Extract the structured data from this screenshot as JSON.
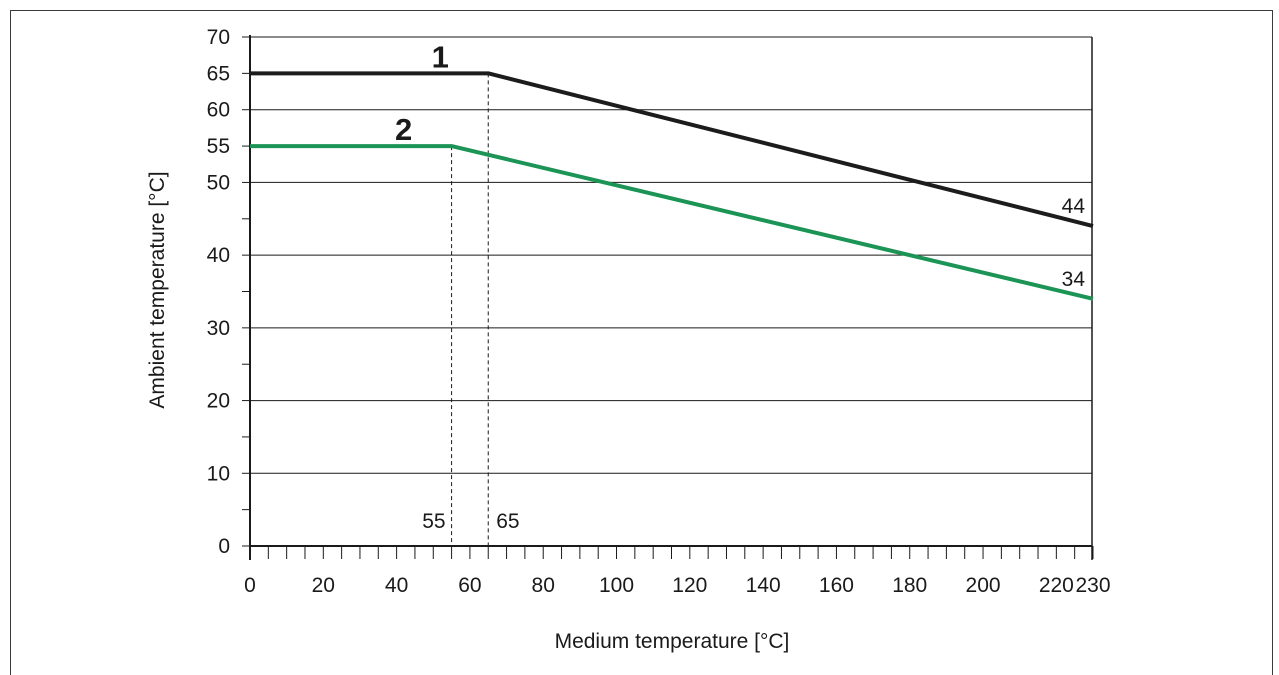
{
  "chart_data": {
    "type": "line",
    "xlabel": "Medium temperature [°C]",
    "ylabel": "Ambient temperature [°C]",
    "xlim": [
      0,
      230
    ],
    "ylim": [
      0,
      70
    ],
    "x_ticks": [
      0,
      20,
      40,
      60,
      80,
      100,
      120,
      140,
      160,
      180,
      200,
      220,
      230
    ],
    "y_ticks": [
      0,
      10,
      20,
      30,
      40,
      50,
      55,
      60,
      65,
      70
    ],
    "grid_y": [
      10,
      20,
      30,
      40,
      50,
      60
    ],
    "grid": "horizontal",
    "series": [
      {
        "name": "1",
        "color": "#1c1c1c",
        "x": [
          0,
          65,
          230
        ],
        "y": [
          65,
          65,
          44
        ],
        "end_label": "44",
        "breakpoint_label": "65"
      },
      {
        "name": "2",
        "color": "#1b9455",
        "x": [
          0,
          55,
          230
        ],
        "y": [
          55,
          55,
          34
        ],
        "end_label": "34",
        "breakpoint_label": "55"
      }
    ]
  }
}
